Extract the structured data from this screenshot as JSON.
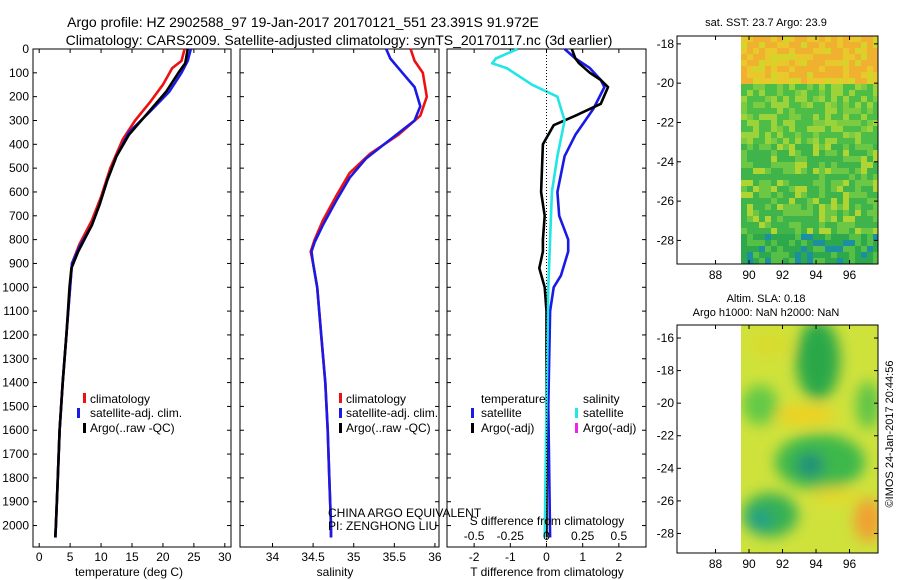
{
  "header": {
    "line1": "Argo profile: HZ 2902588_97 19-Jan-2017 20170121_551 23.391S 91.972E",
    "line2": "Climatology: CARS2009. Satellite-adjusted climatology: synTS_20170117.nc (3d earlier)"
  },
  "watermark": "©IMOS 24-Jan-2017 20:44:56",
  "credit": {
    "line1": "CHINA ARGO EQUIVALENT",
    "line2": "PI: ZENGHONG LIU"
  },
  "colors": {
    "climatology": "#ee1111",
    "satellite": "#1a1ae6",
    "argo": "#000000",
    "cyan": "#22e5e5",
    "magenta": "#ee22ee"
  },
  "chart_data": [
    {
      "type": "line",
      "name": "temperature-profile",
      "xlabel": "temperature (deg C)",
      "ylabel": "",
      "xlim": [
        -1,
        31
      ],
      "ylim": [
        2090,
        0
      ],
      "xticks": [
        "0",
        "5",
        "10",
        "15",
        "20",
        "25",
        "30"
      ],
      "yticks": [
        "0",
        "100",
        "200",
        "300",
        "400",
        "500",
        "600",
        "700",
        "800",
        "900",
        "1000",
        "1100",
        "1200",
        "1300",
        "1400",
        "1500",
        "1600",
        "1700",
        "1800",
        "1900",
        "2000"
      ],
      "legend": [
        "climatology",
        "satellite-adj. clim.",
        "Argo(..raw -QC)"
      ],
      "series": [
        {
          "name": "climatology",
          "color": "#ee1111",
          "points": [
            [
              23.5,
              0
            ],
            [
              23,
              50
            ],
            [
              21.5,
              80
            ],
            [
              20,
              150
            ],
            [
              18,
              220
            ],
            [
              15.5,
              300
            ],
            [
              13.5,
              380
            ],
            [
              11.5,
              500
            ],
            [
              10,
              620
            ],
            [
              8.5,
              720
            ],
            [
              6.5,
              820
            ],
            [
              5.3,
              900
            ],
            [
              5,
              1000
            ],
            [
              4.4,
              1200
            ],
            [
              3.8,
              1400
            ],
            [
              3.3,
              1600
            ],
            [
              3,
              1800
            ],
            [
              2.7,
              2000
            ],
            [
              2.6,
              2050
            ]
          ]
        },
        {
          "name": "satellite-adj. clim.",
          "color": "#1a1ae6",
          "points": [
            [
              24.5,
              0
            ],
            [
              24,
              50
            ],
            [
              23,
              100
            ],
            [
              21,
              180
            ],
            [
              18,
              260
            ],
            [
              14.5,
              350
            ],
            [
              12.5,
              450
            ],
            [
              11,
              550
            ],
            [
              9.8,
              650
            ],
            [
              8.5,
              740
            ],
            [
              6.5,
              830
            ],
            [
              5.3,
              900
            ],
            [
              5,
              1000
            ],
            [
              4.4,
              1200
            ],
            [
              3.8,
              1400
            ],
            [
              3.3,
              1600
            ],
            [
              3,
              1800
            ],
            [
              2.7,
              2000
            ],
            [
              2.6,
              2050
            ]
          ]
        },
        {
          "name": "Argo(..raw -QC)",
          "color": "#000000",
          "points": [
            [
              24,
              0
            ],
            [
              23.8,
              30
            ],
            [
              23.6,
              60
            ],
            [
              22.5,
              100
            ],
            [
              20.5,
              180
            ],
            [
              17.5,
              270
            ],
            [
              14.5,
              360
            ],
            [
              12.5,
              450
            ],
            [
              11,
              550
            ],
            [
              9.8,
              650
            ],
            [
              8.5,
              740
            ],
            [
              6.3,
              850
            ],
            [
              5.2,
              920
            ],
            [
              4.9,
              1000
            ],
            [
              4.4,
              1200
            ],
            [
              3.8,
              1400
            ],
            [
              3.3,
              1600
            ],
            [
              3,
              1800
            ],
            [
              2.7,
              2000
            ],
            [
              2.6,
              2050
            ]
          ]
        }
      ]
    },
    {
      "type": "line",
      "name": "salinity-profile",
      "xlabel": "salinity",
      "xlim": [
        33.6,
        36.05
      ],
      "ylim": [
        2090,
        0
      ],
      "xticks": [
        "34",
        "34.5",
        "35",
        "35.5",
        "36"
      ],
      "legend": [
        "climatology",
        "satellite-adj. clim.",
        "Argo(..raw -QC)"
      ],
      "series": [
        {
          "name": "climatology",
          "color": "#ee1111",
          "points": [
            [
              35.7,
              0
            ],
            [
              35.75,
              50
            ],
            [
              35.85,
              100
            ],
            [
              35.9,
              200
            ],
            [
              35.82,
              280
            ],
            [
              35.55,
              360
            ],
            [
              35.2,
              440
            ],
            [
              34.95,
              520
            ],
            [
              34.78,
              620
            ],
            [
              34.62,
              720
            ],
            [
              34.52,
              800
            ],
            [
              34.47,
              850
            ],
            [
              34.5,
              900
            ],
            [
              34.55,
              1000
            ],
            [
              34.6,
              1200
            ],
            [
              34.65,
              1400
            ],
            [
              34.68,
              1600
            ],
            [
              34.7,
              1800
            ],
            [
              34.72,
              2000
            ],
            [
              34.72,
              2050
            ]
          ]
        },
        {
          "name": "satellite-adj. clim.",
          "color": "#1a1ae6",
          "points": [
            [
              35.4,
              0
            ],
            [
              35.45,
              40
            ],
            [
              35.6,
              100
            ],
            [
              35.75,
              160
            ],
            [
              35.82,
              240
            ],
            [
              35.75,
              300
            ],
            [
              35.45,
              380
            ],
            [
              35.15,
              460
            ],
            [
              34.95,
              540
            ],
            [
              34.78,
              640
            ],
            [
              34.62,
              740
            ],
            [
              34.52,
              810
            ],
            [
              34.48,
              850
            ],
            [
              34.5,
              900
            ],
            [
              34.55,
              1000
            ],
            [
              34.6,
              1200
            ],
            [
              34.65,
              1400
            ],
            [
              34.68,
              1600
            ],
            [
              34.7,
              1800
            ],
            [
              34.72,
              2000
            ],
            [
              34.72,
              2050
            ]
          ]
        }
      ]
    },
    {
      "type": "line",
      "name": "difference-from-climatology",
      "xlabel": "T difference from climatology",
      "xlabel_top": "S difference from climatology",
      "xlim": [
        -2.75,
        2.75
      ],
      "ylim": [
        2090,
        0
      ],
      "xticks": [
        "-2",
        "-1",
        "0",
        "1",
        "2"
      ],
      "xticks_top": [
        "-0.5",
        "-0.25",
        "0",
        "0.25",
        "0.5"
      ],
      "legend_title_left": "temperature",
      "legend_title_right": "salinity",
      "legend": [
        "satellite",
        "Argo(-adj)",
        "satellite",
        "Argo(-adj)"
      ],
      "series": [
        {
          "name": "temperature satellite",
          "color": "#1a1ae6",
          "points": [
            [
              0.5,
              0
            ],
            [
              0.8,
              40
            ],
            [
              1.2,
              80
            ],
            [
              1.5,
              130
            ],
            [
              1.6,
              160
            ],
            [
              1.3,
              250
            ],
            [
              0.8,
              360
            ],
            [
              0.5,
              450
            ],
            [
              0.3,
              600
            ],
            [
              0.35,
              700
            ],
            [
              0.6,
              800
            ],
            [
              0.6,
              850
            ],
            [
              0.4,
              950
            ],
            [
              0.2,
              1000
            ],
            [
              0.1,
              1100
            ],
            [
              0.05,
              1500
            ],
            [
              0.1,
              2050
            ]
          ]
        },
        {
          "name": "temperature Argo(-adj)",
          "color": "#000000",
          "points": [
            [
              0.7,
              0
            ],
            [
              0.8,
              40
            ],
            [
              0.9,
              60
            ],
            [
              1.2,
              100
            ],
            [
              1.5,
              130
            ],
            [
              1.7,
              160
            ],
            [
              1.5,
              230
            ],
            [
              0.8,
              280
            ],
            [
              0.2,
              320
            ],
            [
              -0.1,
              400
            ],
            [
              -0.15,
              600
            ],
            [
              -0.05,
              700
            ],
            [
              -0.1,
              800
            ],
            [
              -0.1,
              850
            ],
            [
              -0.2,
              920
            ],
            [
              -0.05,
              1000
            ],
            [
              0,
              1100
            ],
            [
              0,
              1500
            ],
            [
              0,
              2050
            ]
          ]
        },
        {
          "name": "salinity satellite",
          "color": "#22e5e5",
          "points": [
            [
              -0.8,
              0
            ],
            [
              -1.4,
              40
            ],
            [
              -1.5,
              60
            ],
            [
              -1.1,
              80
            ],
            [
              -0.4,
              150
            ],
            [
              0.3,
              200
            ],
            [
              0.5,
              300
            ],
            [
              0.3,
              450
            ],
            [
              0.15,
              600
            ],
            [
              0.1,
              800
            ],
            [
              0.05,
              1000
            ],
            [
              0,
              1500
            ],
            [
              -0.05,
              2050
            ]
          ]
        }
      ]
    },
    {
      "type": "heatmap",
      "name": "sat-sst-map",
      "title": "sat. SST: 23.7  Argo: 23.9",
      "xticks": [
        "88",
        "90",
        "92",
        "94",
        "96"
      ],
      "yticks": [
        "-18",
        "-20",
        "-22",
        "-24",
        "-26",
        "-28"
      ],
      "xlim": [
        85.7,
        97.7
      ],
      "ylim": [
        -29.2,
        -17.6
      ]
    },
    {
      "type": "heatmap",
      "name": "altim-sla-map",
      "title_line1": "Altim. SLA: 0.18",
      "title_line2": "Argo h1000: NaN h2000: NaN",
      "xticks": [
        "88",
        "90",
        "92",
        "94",
        "96"
      ],
      "yticks": [
        "-16",
        "-18",
        "-20",
        "-22",
        "-24",
        "-26",
        "-28"
      ],
      "xlim": [
        85.7,
        97.7
      ],
      "ylim": [
        -29.2,
        -15.2
      ]
    }
  ]
}
